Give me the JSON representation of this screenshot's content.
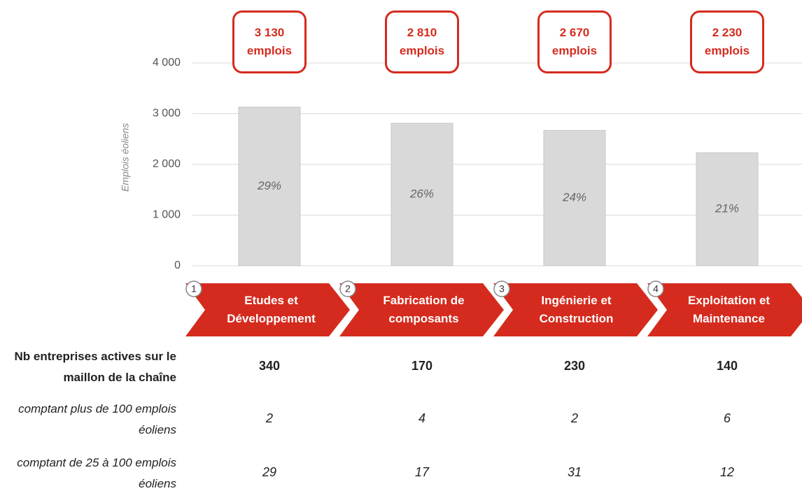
{
  "chart_data": {
    "type": "bar",
    "y_label": "Emplois éoliens",
    "categories": [
      "Etudes et Développement",
      "Fabrication de composants",
      "Ingénierie et Construction",
      "Exploitation et Maintenance"
    ],
    "step_numbers": [
      1,
      2,
      3,
      4
    ],
    "values": [
      3130,
      2810,
      2670,
      2230
    ],
    "value_labels": [
      "3 130 emplois",
      "2 810 emplois",
      "2 670 emplois",
      "2 230 emplois"
    ],
    "percent_labels": [
      "29%",
      "26%",
      "24%",
      "21%"
    ],
    "color": "#d9d9d9",
    "ylim": [
      0,
      4000
    ],
    "yticks": [
      0,
      {
        "value": 1000,
        "label": "1 000"
      },
      {
        "value": 2000,
        "label": "2 000"
      },
      {
        "value": 3000,
        "label": "3 000"
      },
      {
        "value": 4000,
        "label": "4 000"
      }
    ],
    "grid": true
  },
  "table": {
    "rows": [
      {
        "label": "Nb entreprises actives sur le maillon de la chaîne",
        "values": [
          340,
          170,
          230,
          140
        ]
      },
      {
        "label": "comptant plus de 100 emplois éoliens",
        "values": [
          2,
          4,
          2,
          6
        ]
      },
      {
        "label": "comptant de 25 à 100 emplois éoliens",
        "values": [
          29,
          17,
          31,
          12
        ]
      }
    ]
  }
}
